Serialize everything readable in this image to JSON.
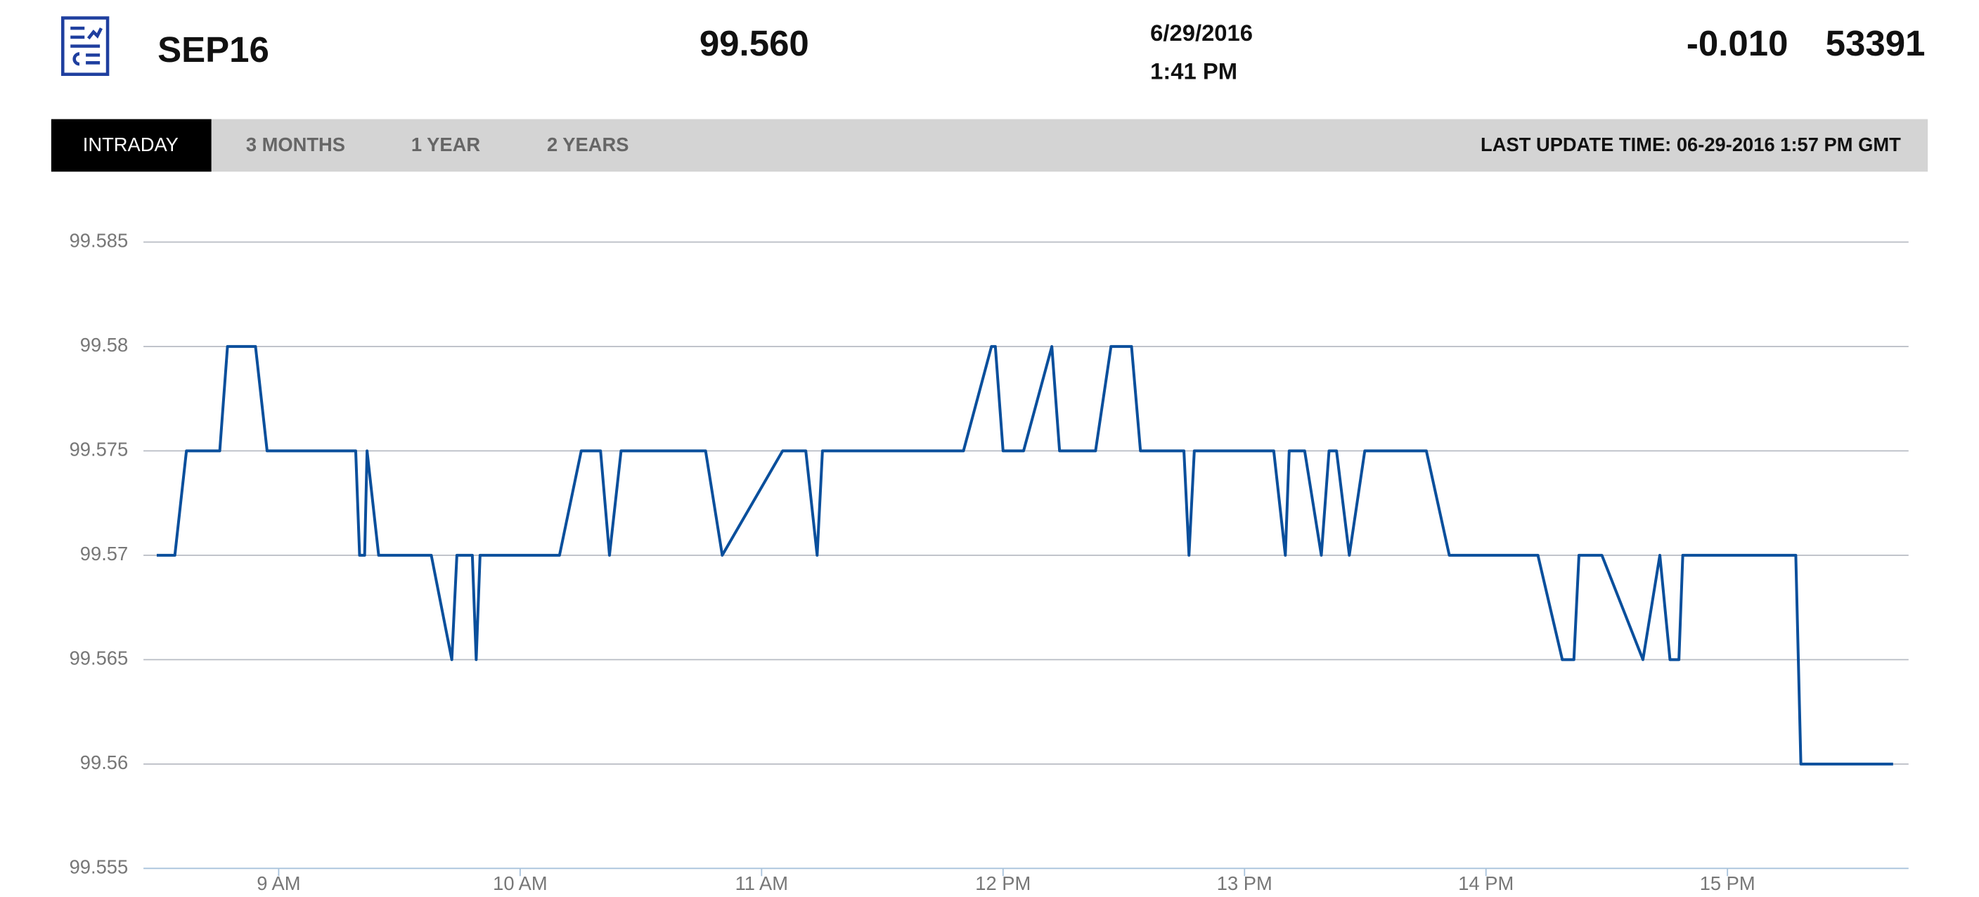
{
  "header": {
    "symbol": "SEP16",
    "price": "99.560",
    "date": "6/29/2016",
    "time": "1:41 PM",
    "change": "-0.010",
    "volume": "53391"
  },
  "tabs": [
    "INTRADAY",
    "3 MONTHS",
    "1 YEAR",
    "2 YEARS"
  ],
  "last_update": "LAST UPDATE TIME: 06-29-2016 1:57 PM GMT",
  "chart_data": {
    "type": "line",
    "color": "#0a4f9c",
    "grid": true,
    "x": [
      8.495,
      8.57,
      8.618,
      8.756,
      8.788,
      8.904,
      8.952,
      9.319,
      9.335,
      9.356,
      9.366,
      9.414,
      9.632,
      9.717,
      9.738,
      9.802,
      9.818,
      9.834,
      10.163,
      10.253,
      10.333,
      10.37,
      10.418,
      10.768,
      10.837,
      11.087,
      11.183,
      11.23,
      11.252,
      11.836,
      11.952,
      11.968,
      12.0,
      12.085,
      12.202,
      12.234,
      12.383,
      12.447,
      12.532,
      12.569,
      12.749,
      12.77,
      12.792,
      13.121,
      13.169,
      13.185,
      13.249,
      13.318,
      13.35,
      13.381,
      13.434,
      13.498,
      13.753,
      13.848,
      14.215,
      14.316,
      14.364,
      14.385,
      14.48,
      14.65,
      14.72,
      14.762,
      14.799,
      14.815,
      15.283,
      15.304,
      15.686
    ],
    "values": [
      99.57,
      99.57,
      99.575,
      99.575,
      99.58,
      99.58,
      99.575,
      99.575,
      99.57,
      99.57,
      99.575,
      99.57,
      99.57,
      99.565,
      99.57,
      99.57,
      99.565,
      99.57,
      99.57,
      99.575,
      99.575,
      99.57,
      99.575,
      99.575,
      99.57,
      99.575,
      99.575,
      99.57,
      99.575,
      99.575,
      99.58,
      99.58,
      99.575,
      99.575,
      99.58,
      99.575,
      99.575,
      99.58,
      99.58,
      99.575,
      99.575,
      99.57,
      99.575,
      99.575,
      99.57,
      99.575,
      99.575,
      99.57,
      99.575,
      99.575,
      99.57,
      99.575,
      99.575,
      99.57,
      99.57,
      99.565,
      99.565,
      99.57,
      99.57,
      99.565,
      99.57,
      99.565,
      99.565,
      99.57,
      99.57,
      99.56,
      99.56
    ],
    "xlim": [
      8.44,
      15.75
    ],
    "xticks": [
      {
        "value": 9,
        "label": "9 AM"
      },
      {
        "value": 10,
        "label": "10 AM"
      },
      {
        "value": 11,
        "label": "11 AM"
      },
      {
        "value": 12,
        "label": "12 PM"
      },
      {
        "value": 13,
        "label": "13 PM"
      },
      {
        "value": 14,
        "label": "14 PM"
      },
      {
        "value": 15,
        "label": "15 PM"
      }
    ],
    "ylim": [
      99.555,
      99.585
    ],
    "yticks": [
      99.555,
      99.56,
      99.565,
      99.57,
      99.575,
      99.58,
      99.585
    ]
  }
}
